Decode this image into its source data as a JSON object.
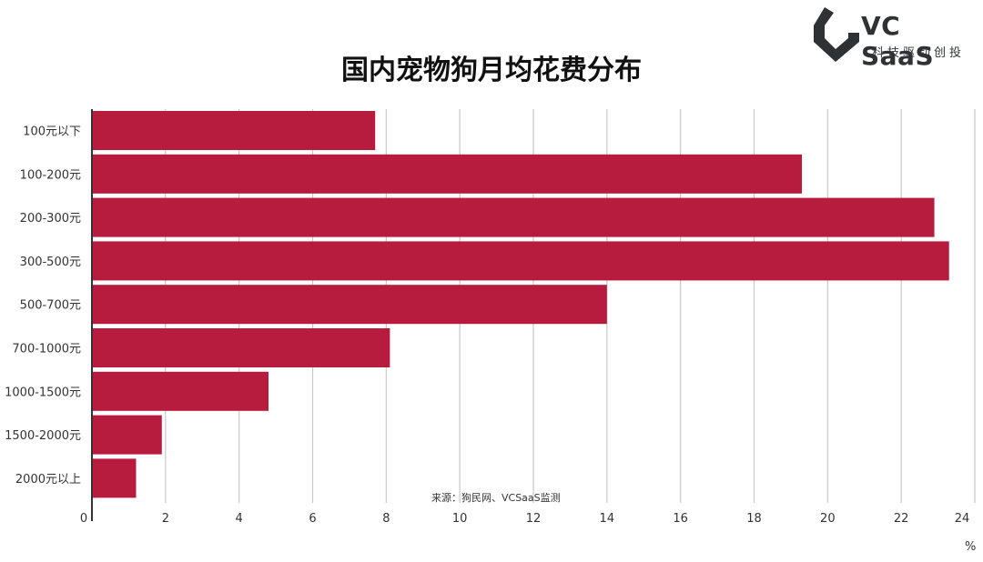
{
  "title": "国内宠物狗月均花费分布",
  "logo": {
    "name": "VC SaaS",
    "tagline": "科技驱动创投",
    "icon": "vcsaas-logo-icon",
    "color": "#2f3234"
  },
  "source": "来源：狗民网、VCSaaS监测",
  "unit_label": "%",
  "colors": {
    "bar": "#b71c3f",
    "grid": "#c8c8c8",
    "axis": "#333333"
  },
  "chart_data": {
    "type": "bar",
    "orientation": "horizontal",
    "title": "国内宠物狗月均花费分布",
    "categories": [
      "100元以下",
      "100-200元",
      "200-300元",
      "300-500元",
      "500-700元",
      "700-1000元",
      "1000-1500元",
      "1500-2000元",
      "2000元以上"
    ],
    "values": [
      7.7,
      19.3,
      22.9,
      23.3,
      14.0,
      8.1,
      4.8,
      1.9,
      1.2
    ],
    "xlim": [
      0,
      24
    ],
    "xticks": [
      0,
      2,
      4,
      6,
      8,
      10,
      12,
      14,
      16,
      18,
      20,
      22,
      24
    ],
    "xlabel": "%",
    "grid": true,
    "legend": "none"
  }
}
